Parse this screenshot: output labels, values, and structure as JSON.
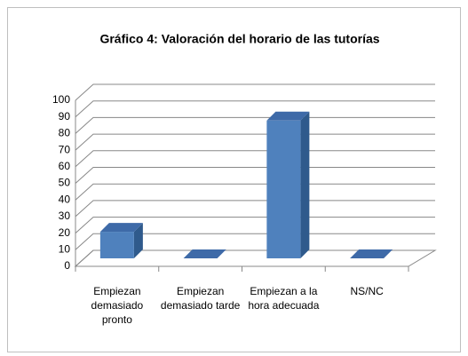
{
  "chart_data": {
    "type": "bar3d",
    "title": "Gráfico 4: Valoración del horario de las tutorías",
    "categories": [
      "Empiezan demasiado pronto",
      "Empiezan demasiado tarde",
      "Empiezan a la hora adecuada",
      "NS/NC"
    ],
    "values": [
      16,
      0,
      83,
      0
    ],
    "color": "#4f81bd",
    "ylim": [
      0,
      100
    ],
    "yticks": [
      0,
      10,
      20,
      30,
      40,
      50,
      60,
      70,
      80,
      90,
      100
    ],
    "grid": true
  }
}
